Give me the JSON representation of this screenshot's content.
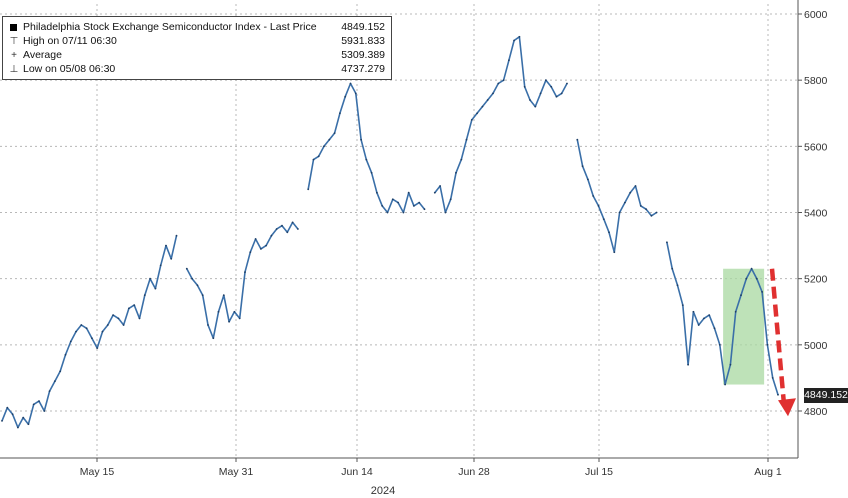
{
  "legend": {
    "title": "Philadelphia Stock Exchange Semiconductor Index - Last Price",
    "last_price": "4849.152",
    "high_label": "High on 07/11 06:30",
    "high_value": "5931.833",
    "avg_label": "Average",
    "avg_value": "5309.389",
    "low_label": "Low on 05/08 06:30",
    "low_value": "4737.279"
  },
  "price_tag": "4849.152",
  "chart_data": {
    "type": "line",
    "title": "Philadelphia Stock Exchange Semiconductor Index - Last Price",
    "xlabel": "2024",
    "ylabel": "",
    "x_ticks": [
      "May 15",
      "May 31",
      "Jun 14",
      "Jun 28",
      "Jul 15",
      "Aug 1"
    ],
    "y_ticks": [
      4800,
      5000,
      5200,
      5400,
      5600,
      5800,
      6000
    ],
    "ylim": [
      4670,
      6040
    ],
    "grid": true,
    "highlight_color": "#a8d8a0",
    "line_color": "#3a6fa8",
    "arrow_color": "#e03030",
    "series": [
      {
        "values": [
          4770,
          4810,
          4790,
          4750,
          4780,
          4760,
          4820,
          4830,
          4800,
          4860,
          4890,
          4920,
          4970,
          5010,
          5040,
          5060,
          5050,
          5020,
          4990,
          5040,
          5060,
          5090,
          5080,
          5060,
          5110,
          5120,
          5080,
          5150,
          5200,
          5170,
          5240,
          5300,
          5260,
          5330,
          5230,
          5200,
          5180,
          5150,
          5060,
          5020,
          5100,
          5150,
          5070,
          5100,
          5080,
          5220,
          5280,
          5320,
          5290,
          5300,
          5330,
          5350,
          5360,
          5340,
          5370,
          5350,
          5470,
          5560,
          5570,
          5600,
          5620,
          5640,
          5700,
          5750,
          5790,
          5760,
          5620,
          5560,
          5520,
          5460,
          5420,
          5400,
          5440,
          5430,
          5400,
          5460,
          5420,
          5430,
          5410,
          5460,
          5480,
          5400,
          5440,
          5520,
          5560,
          5620,
          5680,
          5700,
          5720,
          5740,
          5760,
          5790,
          5800,
          5860,
          5920,
          5931,
          5780,
          5740,
          5720,
          5760,
          5800,
          5780,
          5750,
          5760,
          5790,
          5620,
          5540,
          5500,
          5450,
          5420,
          5380,
          5340,
          5280,
          5400,
          5430,
          5460,
          5480,
          5420,
          5410,
          5390,
          5400,
          5310,
          5230,
          5180,
          5120,
          4940,
          5100,
          5060,
          5080,
          5090,
          5050,
          5000,
          4880,
          4940,
          5100,
          5150,
          5200,
          5230,
          5200,
          5160,
          5000,
          4900,
          4849
        ],
        "gaps": [
          34,
          56,
          79,
          105,
          121
        ],
        "gap_x": [
          152,
          172
        ]
      }
    ],
    "highlight_range": [
      132,
      139
    ]
  }
}
